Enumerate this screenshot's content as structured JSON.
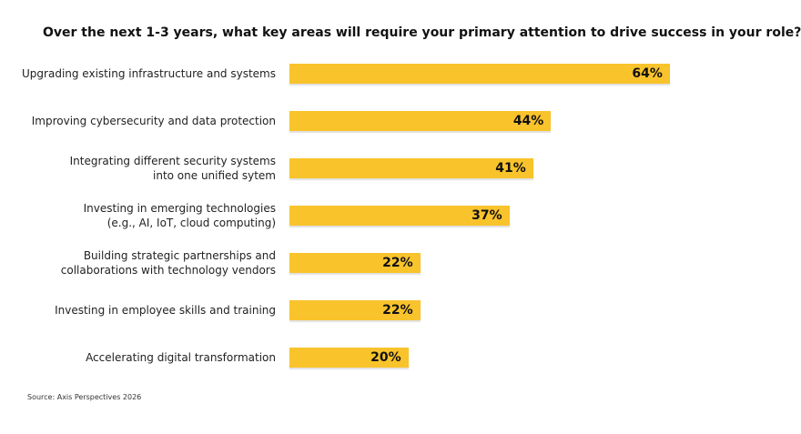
{
  "chart_data": {
    "type": "bar",
    "orientation": "horizontal",
    "title": "Over the next 1-3 years, what key areas will require your primary attention to drive success in your role?",
    "categories": [
      "Upgrading existing infrastructure and systems",
      "Improving cybersecurity and data protection",
      "Integrating different security systems\ninto one unified sytem",
      "Investing in emerging technologies\n(e.g., AI, IoT, cloud computing)",
      "Building strategic partnerships and\ncollaborations with technology vendors",
      "Investing in employee skills and training",
      "Accelerating digital transformation"
    ],
    "values": [
      64,
      44,
      41,
      37,
      22,
      22,
      20
    ],
    "value_labels": [
      "64%",
      "44%",
      "41%",
      "37%",
      "22%",
      "22%",
      "20%"
    ],
    "color": "#f9c32c",
    "source": "Source: Axis Perspectives 2026"
  }
}
